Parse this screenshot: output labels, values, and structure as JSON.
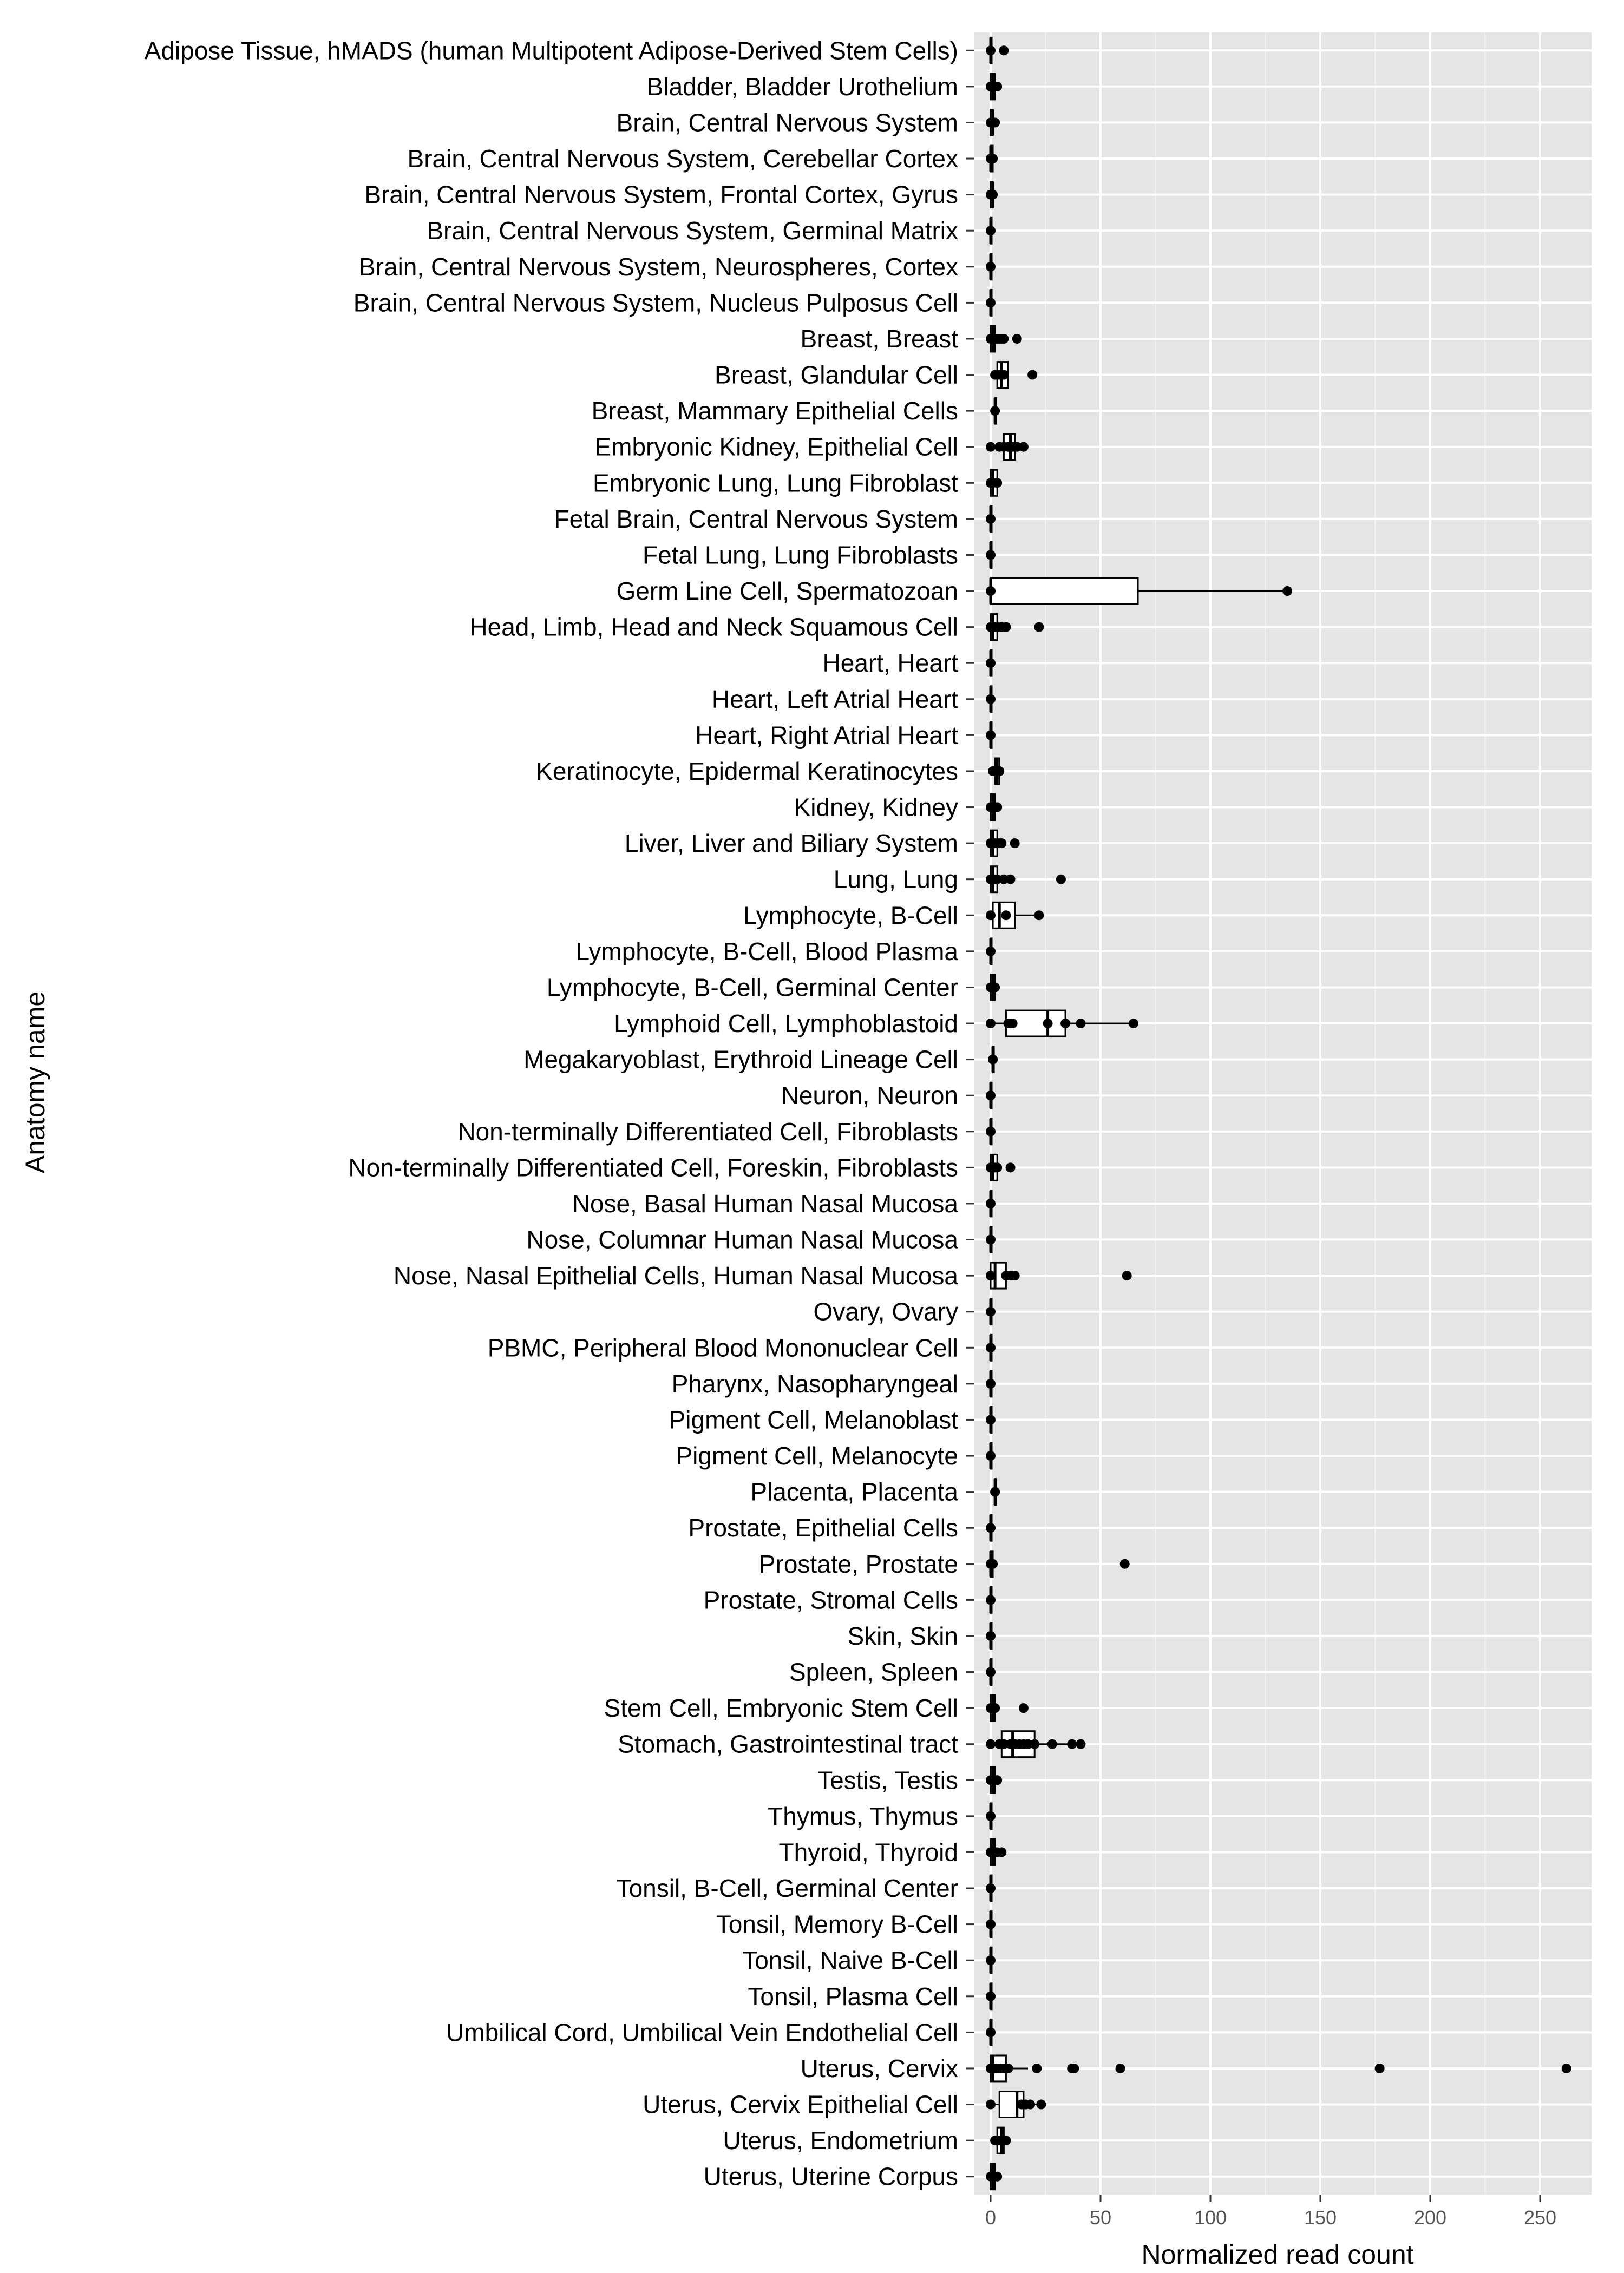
{
  "chart_data": {
    "type": "boxplot",
    "orientation": "horizontal",
    "xlabel": "Normalized read count",
    "ylabel": "Anatomy name",
    "xlim": [
      -10,
      270
    ],
    "xticks": [
      0,
      50,
      100,
      150,
      200,
      250
    ],
    "grid": true,
    "categories": [
      {
        "name": "Adipose Tissue, hMADS (human Multipotent Adipose-Derived Stem Cells)",
        "q1": 0,
        "median": 0,
        "q3": 0,
        "whisker_low": 0,
        "whisker_high": 0,
        "points": [
          0,
          6
        ]
      },
      {
        "name": "Bladder, Bladder Urothelium",
        "q1": 0,
        "median": 1,
        "q3": 2,
        "whisker_low": 0,
        "whisker_high": 3,
        "points": [
          0,
          1,
          2,
          3
        ]
      },
      {
        "name": "Brain, Central Nervous System",
        "q1": 0,
        "median": 1,
        "q3": 1,
        "whisker_low": 0,
        "whisker_high": 2,
        "points": [
          0,
          1,
          2
        ]
      },
      {
        "name": "Brain, Central Nervous System, Cerebellar Cortex",
        "q1": 0,
        "median": 0,
        "q3": 1,
        "whisker_low": 0,
        "whisker_high": 1,
        "points": [
          0,
          1
        ]
      },
      {
        "name": "Brain, Central Nervous System, Frontal Cortex, Gyrus",
        "q1": 0,
        "median": 1,
        "q3": 1,
        "whisker_low": 0,
        "whisker_high": 1,
        "points": [
          0,
          1
        ]
      },
      {
        "name": "Brain, Central Nervous System, Germinal Matrix",
        "q1": 0,
        "median": 0,
        "q3": 0,
        "whisker_low": 0,
        "whisker_high": 0,
        "points": [
          0
        ]
      },
      {
        "name": "Brain, Central Nervous System, Neurospheres, Cortex",
        "q1": 0,
        "median": 0,
        "q3": 0,
        "whisker_low": 0,
        "whisker_high": 0,
        "points": [
          0
        ]
      },
      {
        "name": "Brain, Central Nervous System, Nucleus Pulposus Cell",
        "q1": 0,
        "median": 0,
        "q3": 0,
        "whisker_low": 0,
        "whisker_high": 0,
        "points": [
          0
        ]
      },
      {
        "name": "Breast, Breast",
        "q1": 0,
        "median": 1,
        "q3": 2,
        "whisker_low": 0,
        "whisker_high": 3,
        "points": [
          0,
          1,
          2,
          3,
          4,
          5,
          6,
          12
        ]
      },
      {
        "name": "Breast, Glandular Cell",
        "q1": 3,
        "median": 5,
        "q3": 8,
        "whisker_low": 2,
        "whisker_high": 8,
        "points": [
          2,
          4,
          6,
          19
        ]
      },
      {
        "name": "Breast, Mammary Epithelial Cells",
        "q1": 2,
        "median": 2,
        "q3": 2,
        "whisker_low": 2,
        "whisker_high": 2,
        "points": [
          2
        ]
      },
      {
        "name": "Embryonic Kidney,  Epithelial Cell",
        "q1": 6,
        "median": 9,
        "q3": 11,
        "whisker_low": 0,
        "whisker_high": 15,
        "points": [
          0,
          4,
          6,
          8,
          9,
          10,
          12,
          15
        ]
      },
      {
        "name": "Embryonic Lung, Lung Fibroblast",
        "q1": 0,
        "median": 1,
        "q3": 3,
        "whisker_low": 0,
        "whisker_high": 3,
        "points": [
          0,
          1,
          3
        ]
      },
      {
        "name": "Fetal Brain, Central Nervous System",
        "q1": 0,
        "median": 0,
        "q3": 0,
        "whisker_low": 0,
        "whisker_high": 0,
        "points": [
          0
        ]
      },
      {
        "name": "Fetal Lung, Lung Fibroblasts",
        "q1": 0,
        "median": 0,
        "q3": 0,
        "whisker_low": 0,
        "whisker_high": 0,
        "points": [
          0
        ]
      },
      {
        "name": "Germ Line Cell, Spermatozoan",
        "q1": 0,
        "median": 0,
        "q3": 67,
        "whisker_low": 0,
        "whisker_high": 135,
        "points": [
          0,
          135
        ]
      },
      {
        "name": "Head, Limb, Head and Neck Squamous Cell",
        "q1": 0,
        "median": 1,
        "q3": 3,
        "whisker_low": 0,
        "whisker_high": 7,
        "points": [
          0,
          1,
          2,
          3,
          5,
          7,
          22
        ]
      },
      {
        "name": "Heart, Heart",
        "q1": 0,
        "median": 0,
        "q3": 0,
        "whisker_low": 0,
        "whisker_high": 0,
        "points": [
          0
        ]
      },
      {
        "name": "Heart, Left Atrial Heart",
        "q1": 0,
        "median": 0,
        "q3": 0,
        "whisker_low": 0,
        "whisker_high": 0,
        "points": [
          0
        ]
      },
      {
        "name": "Heart, Right Atrial Heart",
        "q1": 0,
        "median": 0,
        "q3": 0,
        "whisker_low": 0,
        "whisker_high": 0,
        "points": [
          0
        ]
      },
      {
        "name": "Keratinocyte, Epidermal Keratinocytes",
        "q1": 2,
        "median": 3,
        "q3": 4,
        "whisker_low": 1,
        "whisker_high": 4,
        "points": [
          1,
          2,
          3,
          4
        ]
      },
      {
        "name": "Kidney, Kidney",
        "q1": 0,
        "median": 1,
        "q3": 2,
        "whisker_low": 0,
        "whisker_high": 3,
        "points": [
          0,
          1,
          2,
          3
        ]
      },
      {
        "name": "Liver, Liver and Biliary System",
        "q1": 0,
        "median": 1,
        "q3": 3,
        "whisker_low": 0,
        "whisker_high": 5,
        "points": [
          0,
          1,
          2,
          3,
          4,
          5,
          11
        ]
      },
      {
        "name": "Lung, Lung",
        "q1": 0,
        "median": 1,
        "q3": 3,
        "whisker_low": 0,
        "whisker_high": 6,
        "points": [
          0,
          1,
          2,
          3,
          6,
          9,
          32
        ]
      },
      {
        "name": "Lymphocyte, B-Cell",
        "q1": 1,
        "median": 4,
        "q3": 11,
        "whisker_low": 0,
        "whisker_high": 22,
        "points": [
          0,
          7,
          22
        ]
      },
      {
        "name": "Lymphocyte, B-Cell, Blood Plasma",
        "q1": 0,
        "median": 0,
        "q3": 0,
        "whisker_low": 0,
        "whisker_high": 0,
        "points": [
          0
        ]
      },
      {
        "name": "Lymphocyte, B-Cell, Germinal Center",
        "q1": 0,
        "median": 1,
        "q3": 2,
        "whisker_low": 0,
        "whisker_high": 2,
        "points": [
          0,
          1,
          2
        ]
      },
      {
        "name": "Lymphoid Cell, Lymphoblastoid",
        "q1": 7,
        "median": 26,
        "q3": 34,
        "whisker_low": 0,
        "whisker_high": 65,
        "points": [
          0,
          8,
          10,
          26,
          34,
          41,
          65
        ]
      },
      {
        "name": "Megakaryoblast, Erythroid Lineage Cell",
        "q1": 1,
        "median": 1,
        "q3": 1,
        "whisker_low": 1,
        "whisker_high": 1,
        "points": [
          1
        ]
      },
      {
        "name": "Neuron, Neuron",
        "q1": 0,
        "median": 0,
        "q3": 0,
        "whisker_low": 0,
        "whisker_high": 0,
        "points": [
          0
        ]
      },
      {
        "name": "Non-terminally Differentiated Cell, Fibroblasts",
        "q1": 0,
        "median": 0,
        "q3": 0,
        "whisker_low": 0,
        "whisker_high": 0,
        "points": [
          0
        ]
      },
      {
        "name": "Non-terminally Differentiated Cell, Foreskin, Fibroblasts",
        "q1": 0,
        "median": 1,
        "q3": 3,
        "whisker_low": 0,
        "whisker_high": 3,
        "points": [
          0,
          1,
          2,
          3,
          9
        ]
      },
      {
        "name": "Nose, Basal Human Nasal Mucosa",
        "q1": 0,
        "median": 0,
        "q3": 0,
        "whisker_low": 0,
        "whisker_high": 0,
        "points": [
          0
        ]
      },
      {
        "name": "Nose, Columnar Human Nasal Mucosa",
        "q1": 0,
        "median": 0,
        "q3": 0,
        "whisker_low": 0,
        "whisker_high": 0,
        "points": [
          0
        ]
      },
      {
        "name": "Nose, Nasal Epithelial Cells, Human Nasal Mucosa",
        "q1": 0,
        "median": 2,
        "q3": 7,
        "whisker_low": 0,
        "whisker_high": 11,
        "points": [
          0,
          7,
          9,
          11,
          62
        ]
      },
      {
        "name": "Ovary, Ovary",
        "q1": 0,
        "median": 0,
        "q3": 0,
        "whisker_low": 0,
        "whisker_high": 0,
        "points": [
          0
        ]
      },
      {
        "name": "PBMC, Peripheral Blood Mononuclear Cell ",
        "q1": 0,
        "median": 0,
        "q3": 0,
        "whisker_low": 0,
        "whisker_high": 0,
        "points": [
          0
        ]
      },
      {
        "name": "Pharynx, Nasopharyngeal",
        "q1": 0,
        "median": 0,
        "q3": 0,
        "whisker_low": 0,
        "whisker_high": 0,
        "points": [
          0
        ]
      },
      {
        "name": "Pigment Cell, Melanoblast",
        "q1": 0,
        "median": 0,
        "q3": 0,
        "whisker_low": 0,
        "whisker_high": 0,
        "points": [
          0
        ]
      },
      {
        "name": "Pigment Cell, Melanocyte",
        "q1": 0,
        "median": 0,
        "q3": 0,
        "whisker_low": 0,
        "whisker_high": 0,
        "points": [
          0
        ]
      },
      {
        "name": "Placenta, Placenta",
        "q1": 2,
        "median": 2,
        "q3": 2,
        "whisker_low": 2,
        "whisker_high": 2,
        "points": [
          2
        ]
      },
      {
        "name": "Prostate, Epithelial Cells",
        "q1": 0,
        "median": 0,
        "q3": 0,
        "whisker_low": 0,
        "whisker_high": 0,
        "points": [
          0
        ]
      },
      {
        "name": "Prostate, Prostate",
        "q1": 0,
        "median": 0,
        "q3": 1,
        "whisker_low": 0,
        "whisker_high": 1,
        "points": [
          0,
          1,
          61
        ]
      },
      {
        "name": "Prostate, Stromal Cells",
        "q1": 0,
        "median": 0,
        "q3": 0,
        "whisker_low": 0,
        "whisker_high": 0,
        "points": [
          0
        ]
      },
      {
        "name": "Skin, Skin",
        "q1": 0,
        "median": 0,
        "q3": 0,
        "whisker_low": 0,
        "whisker_high": 0,
        "points": [
          0
        ]
      },
      {
        "name": "Spleen, Spleen",
        "q1": 0,
        "median": 0,
        "q3": 0,
        "whisker_low": 0,
        "whisker_high": 0,
        "points": [
          0
        ]
      },
      {
        "name": "Stem Cell, Embryonic Stem Cell",
        "q1": 0,
        "median": 1,
        "q3": 2,
        "whisker_low": 0,
        "whisker_high": 2,
        "points": [
          0,
          1,
          2,
          15
        ]
      },
      {
        "name": "Stomach, Gastrointestinal tract",
        "q1": 5,
        "median": 10,
        "q3": 20,
        "whisker_low": 0,
        "whisker_high": 42,
        "points": [
          0,
          4,
          6,
          9,
          11,
          13,
          15,
          17,
          20,
          28,
          37,
          41
        ]
      },
      {
        "name": "Testis, Testis",
        "q1": 0,
        "median": 1,
        "q3": 2,
        "whisker_low": 0,
        "whisker_high": 3,
        "points": [
          0,
          1,
          2,
          3
        ]
      },
      {
        "name": "Thymus, Thymus",
        "q1": 0,
        "median": 0,
        "q3": 0,
        "whisker_low": 0,
        "whisker_high": 0,
        "points": [
          0
        ]
      },
      {
        "name": "Thyroid, Thyroid",
        "q1": 0,
        "median": 1,
        "q3": 2,
        "whisker_low": 0,
        "whisker_high": 5,
        "points": [
          0,
          1,
          2,
          3,
          5
        ]
      },
      {
        "name": "Tonsil, B-Cell, Germinal Center",
        "q1": 0,
        "median": 0,
        "q3": 0,
        "whisker_low": 0,
        "whisker_high": 0,
        "points": [
          0
        ]
      },
      {
        "name": "Tonsil, Memory B-Cell",
        "q1": 0,
        "median": 0,
        "q3": 0,
        "whisker_low": 0,
        "whisker_high": 0,
        "points": [
          0
        ]
      },
      {
        "name": "Tonsil, Naive B-Cell",
        "q1": 0,
        "median": 0,
        "q3": 0,
        "whisker_low": 0,
        "whisker_high": 0,
        "points": [
          0
        ]
      },
      {
        "name": "Tonsil, Plasma Cell",
        "q1": 0,
        "median": 0,
        "q3": 0,
        "whisker_low": 0,
        "whisker_high": 0,
        "points": [
          0
        ]
      },
      {
        "name": "Umbilical Cord, Umbilical Vein Endothelial Cell",
        "q1": 0,
        "median": 0,
        "q3": 0,
        "whisker_low": 0,
        "whisker_high": 0,
        "points": [
          0
        ]
      },
      {
        "name": "Uterus, Cervix",
        "q1": 0,
        "median": 1,
        "q3": 7,
        "whisker_low": 0,
        "whisker_high": 17,
        "points": [
          0,
          2,
          4,
          6,
          8,
          21,
          37,
          38,
          59,
          177,
          262
        ]
      },
      {
        "name": "Uterus, Cervix Epithelial Cell",
        "q1": 4,
        "median": 12,
        "q3": 15,
        "whisker_low": 0,
        "whisker_high": 23,
        "points": [
          0,
          14,
          16,
          18,
          23
        ]
      },
      {
        "name": "Uterus, Endometrium",
        "q1": 3,
        "median": 5,
        "q3": 6,
        "whisker_low": 2,
        "whisker_high": 7,
        "points": [
          2,
          3,
          4,
          5,
          6,
          7
        ]
      },
      {
        "name": "Uterus, Uterine Corpus",
        "q1": 0,
        "median": 1,
        "q3": 2,
        "whisker_low": 0,
        "whisker_high": 3,
        "points": [
          0,
          1,
          2,
          3
        ]
      }
    ]
  },
  "colors": {
    "panel": "#e5e5e5",
    "grid": "#ffffff",
    "points": "#000000",
    "box_fill": "#ffffff",
    "tick_text": "#555555"
  }
}
